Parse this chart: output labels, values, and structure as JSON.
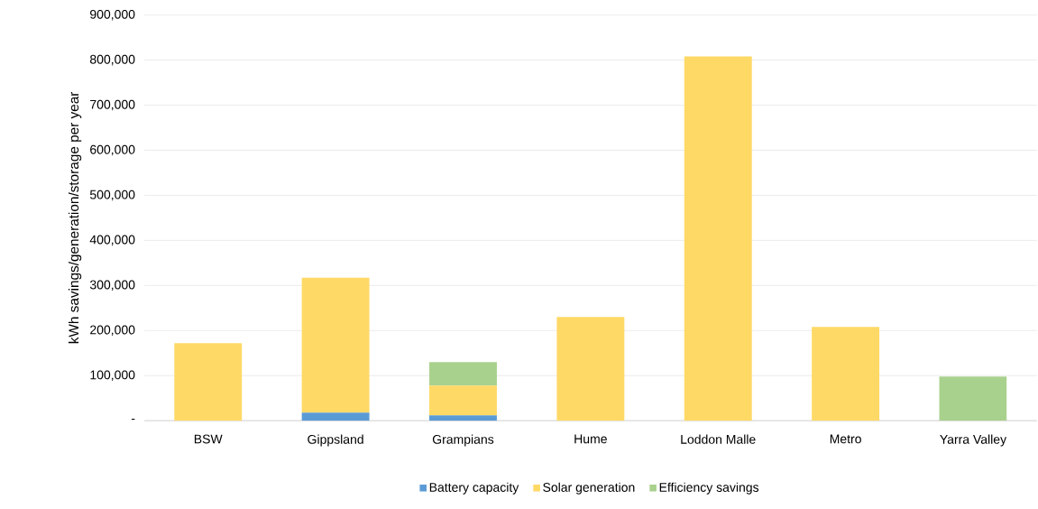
{
  "chart_data": {
    "type": "bar",
    "stacked": true,
    "categories": [
      "BSW",
      "Gippsland",
      "Grampians",
      "Hume",
      "Loddon Malle",
      "Metro",
      "Yarra Valley"
    ],
    "series": [
      {
        "name": "Battery capacity",
        "color": "#5b9bd5",
        "values": [
          null,
          18000,
          12000,
          null,
          null,
          null,
          null
        ]
      },
      {
        "name": "Solar generation",
        "color": "#ffd966",
        "values": [
          172000,
          299000,
          66000,
          230000,
          808000,
          208000,
          null
        ]
      },
      {
        "name": "Efficiency savings",
        "color": "#a9d18e",
        "values": [
          null,
          null,
          52000,
          null,
          null,
          null,
          98000
        ]
      }
    ],
    "ylabel": "kWh savings/generation/storage per year",
    "ylim": [
      0,
      900000
    ],
    "yticks": [
      {
        "value": 0,
        "label": "-"
      },
      {
        "value": 100000,
        "label": "100,000"
      },
      {
        "value": 200000,
        "label": "200,000"
      },
      {
        "value": 300000,
        "label": "300,000"
      },
      {
        "value": 400000,
        "label": "400,000"
      },
      {
        "value": 500000,
        "label": "500,000"
      },
      {
        "value": 600000,
        "label": "600,000"
      },
      {
        "value": 700000,
        "label": "700,000"
      },
      {
        "value": 800000,
        "label": "800,000"
      },
      {
        "value": 900000,
        "label": "900,000"
      }
    ],
    "grid": "y",
    "legend": "bottom"
  }
}
